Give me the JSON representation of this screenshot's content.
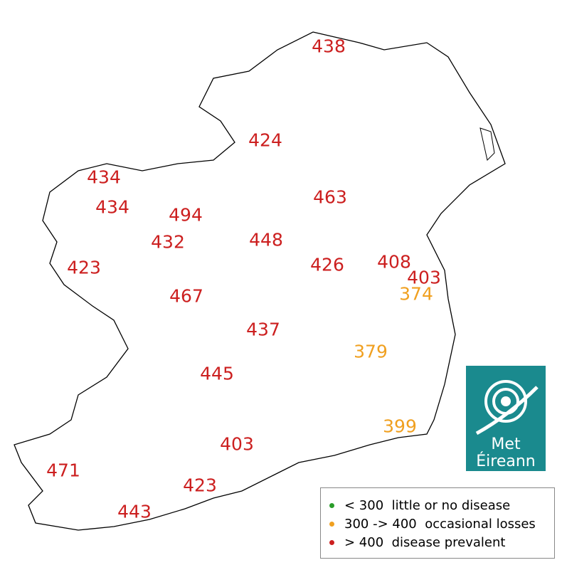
{
  "points": [
    {
      "value": 438,
      "color": "#cc1f1f"
    },
    {
      "value": 424,
      "color": "#cc1f1f"
    },
    {
      "value": 434,
      "color": "#cc1f1f"
    },
    {
      "value": 463,
      "color": "#cc1f1f"
    },
    {
      "value": 434,
      "color": "#cc1f1f"
    },
    {
      "value": 494,
      "color": "#cc1f1f"
    },
    {
      "value": 432,
      "color": "#cc1f1f"
    },
    {
      "value": 448,
      "color": "#cc1f1f"
    },
    {
      "value": 423,
      "color": "#cc1f1f"
    },
    {
      "value": 426,
      "color": "#cc1f1f"
    },
    {
      "value": 408,
      "color": "#cc1f1f"
    },
    {
      "value": 403,
      "color": "#cc1f1f"
    },
    {
      "value": 374,
      "color": "#f0a020"
    },
    {
      "value": 467,
      "color": "#cc1f1f"
    },
    {
      "value": 437,
      "color": "#cc1f1f"
    },
    {
      "value": 379,
      "color": "#f0a020"
    },
    {
      "value": 445,
      "color": "#cc1f1f"
    },
    {
      "value": 399,
      "color": "#f0a020"
    },
    {
      "value": 403,
      "color": "#cc1f1f"
    },
    {
      "value": 471,
      "color": "#cc1f1f"
    },
    {
      "value": 423,
      "color": "#cc1f1f"
    },
    {
      "value": 443,
      "color": "#cc1f1f"
    }
  ],
  "legend": [
    {
      "range": "< 300",
      "label": "little or no disease",
      "color": "#2a9d2a"
    },
    {
      "range": "300 -> 400",
      "label": "occasional losses",
      "color": "#f0a020"
    },
    {
      "range": "> 400",
      "label": "disease prevalent",
      "color": "#cc1f1f"
    }
  ],
  "logo": {
    "line1": "Met",
    "line2": "Éireann"
  }
}
